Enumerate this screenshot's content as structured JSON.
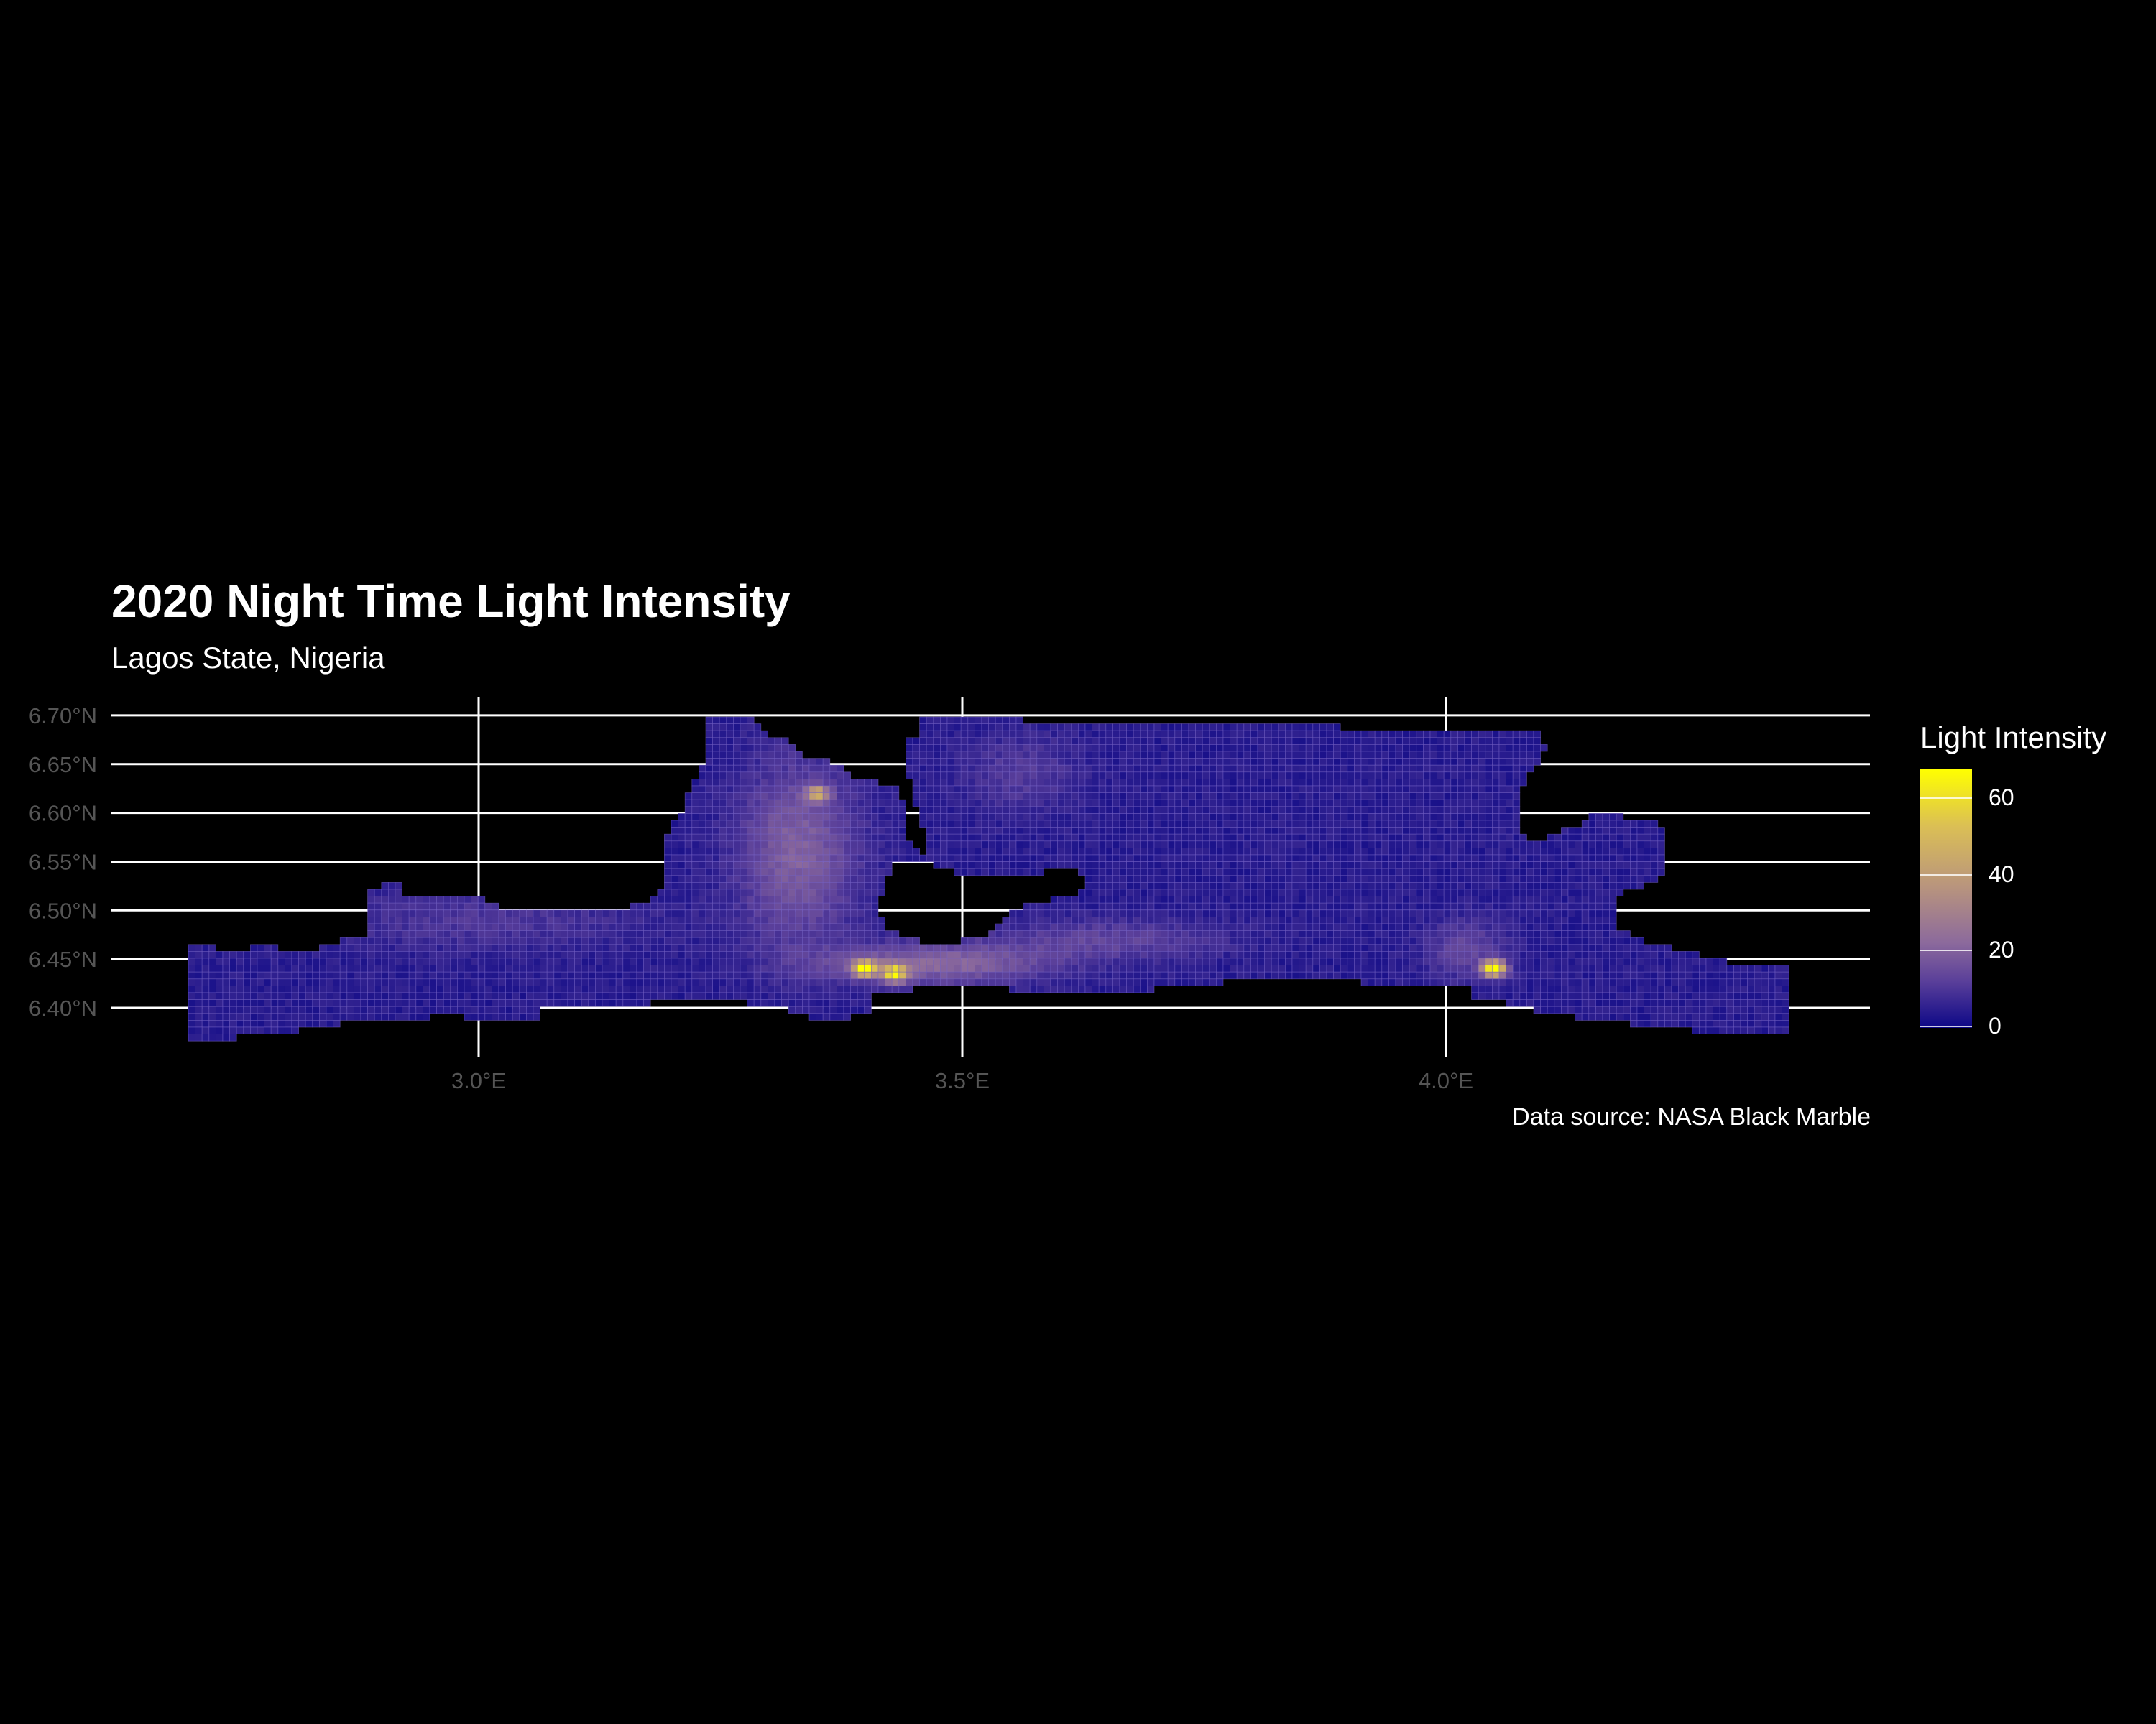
{
  "title": "2020 Night Time Light Intensity",
  "subtitle": "Lagos State, Nigeria",
  "caption": "Data source: NASA Black Marble",
  "legend": {
    "title": "Light Intensity",
    "ticks": [
      "0",
      "20",
      "40",
      "60"
    ],
    "min": 0,
    "max": 66
  },
  "colors": {
    "background": "#000000",
    "low": "#0d0887",
    "mid": "#8c6a9c",
    "high": "#ffff00",
    "grid": "#ffffff",
    "axis_text": "#555555"
  },
  "chart_data": {
    "type": "heatmap",
    "title": "2020 Night Time Light Intensity",
    "subtitle": "Lagos State, Nigeria",
    "x_axis": {
      "label": "",
      "ticks": [
        "3.0°E",
        "3.5°E",
        "4.0°E"
      ],
      "tick_values": [
        3.0,
        3.5,
        4.0
      ],
      "range": [
        2.62,
        4.44
      ]
    },
    "y_axis": {
      "label": "",
      "ticks": [
        "6.40°N",
        "6.45°N",
        "6.50°N",
        "6.55°N",
        "6.60°N",
        "6.65°N",
        "6.70°N"
      ],
      "tick_values": [
        6.4,
        6.45,
        6.5,
        6.55,
        6.6,
        6.65,
        6.7
      ],
      "range": [
        6.37,
        6.71
      ]
    },
    "value_range": [
      0,
      66
    ],
    "grid": true,
    "legend_position": "right",
    "hotspots": [
      {
        "lon": 3.4,
        "lat": 6.44,
        "value": 62
      },
      {
        "lon": 3.43,
        "lat": 6.435,
        "value": 55
      },
      {
        "lon": 4.05,
        "lat": 6.44,
        "value": 66
      },
      {
        "lon": 3.35,
        "lat": 6.62,
        "value": 35
      }
    ]
  }
}
